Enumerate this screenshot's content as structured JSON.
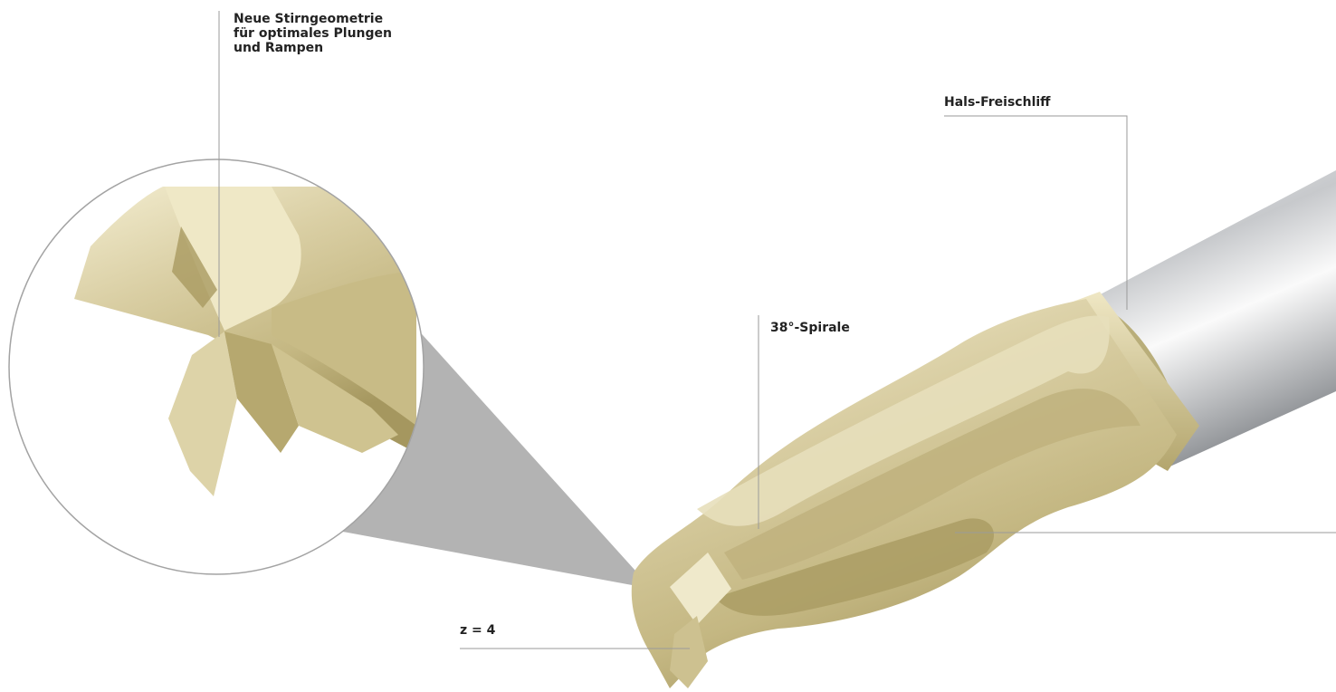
{
  "callouts": {
    "end_geometry": {
      "line1": "Neue Stirngeometrie",
      "line2": "für optimales Plungen",
      "line3": "und Rampen"
    },
    "neck_relief": "Hals-Freischliff",
    "helix": "38°-Spirale",
    "flutes": "z = 4"
  },
  "colors": {
    "coating_gold": "#d8cda2",
    "coating_highlight": "#f1ebcd",
    "coating_shadow": "#a89a63",
    "shank_steel": "#b9bcc0",
    "leader_line": "#9a9a9a",
    "zoom_cone": "#b3b3b3"
  }
}
